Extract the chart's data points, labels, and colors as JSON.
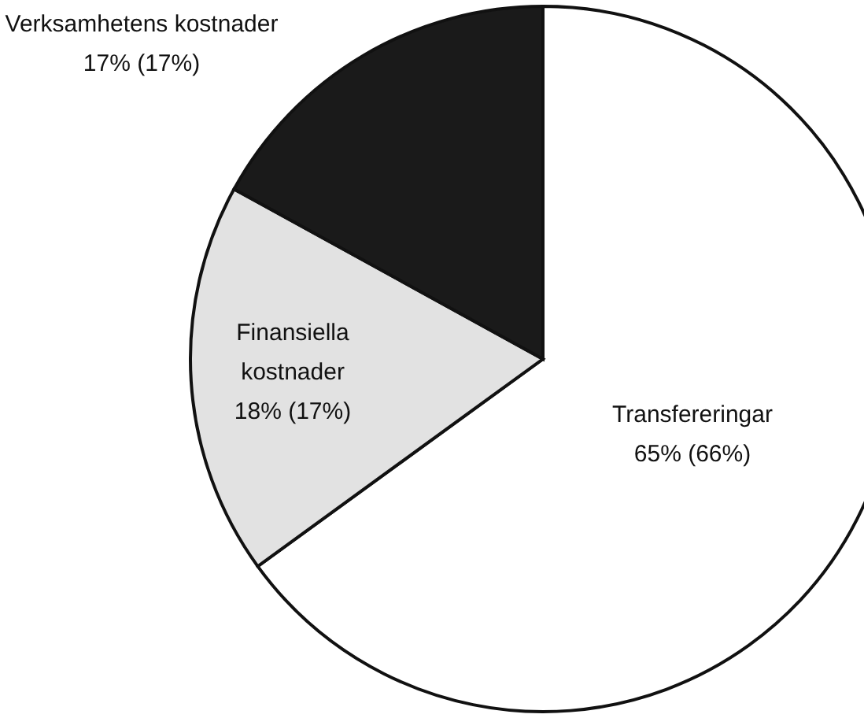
{
  "chart_data": {
    "type": "pie",
    "categories": [
      "Transfereringar",
      "Finansiella kostnader",
      "Verksamhetens kostnader"
    ],
    "values": [
      65,
      18,
      17
    ],
    "colors": [
      "#ffffff",
      "#e2e2e2",
      "#1a1a1a"
    ],
    "value_labels": [
      "65% (66%)",
      "18% (17%)",
      "17% (17%)"
    ]
  }
}
